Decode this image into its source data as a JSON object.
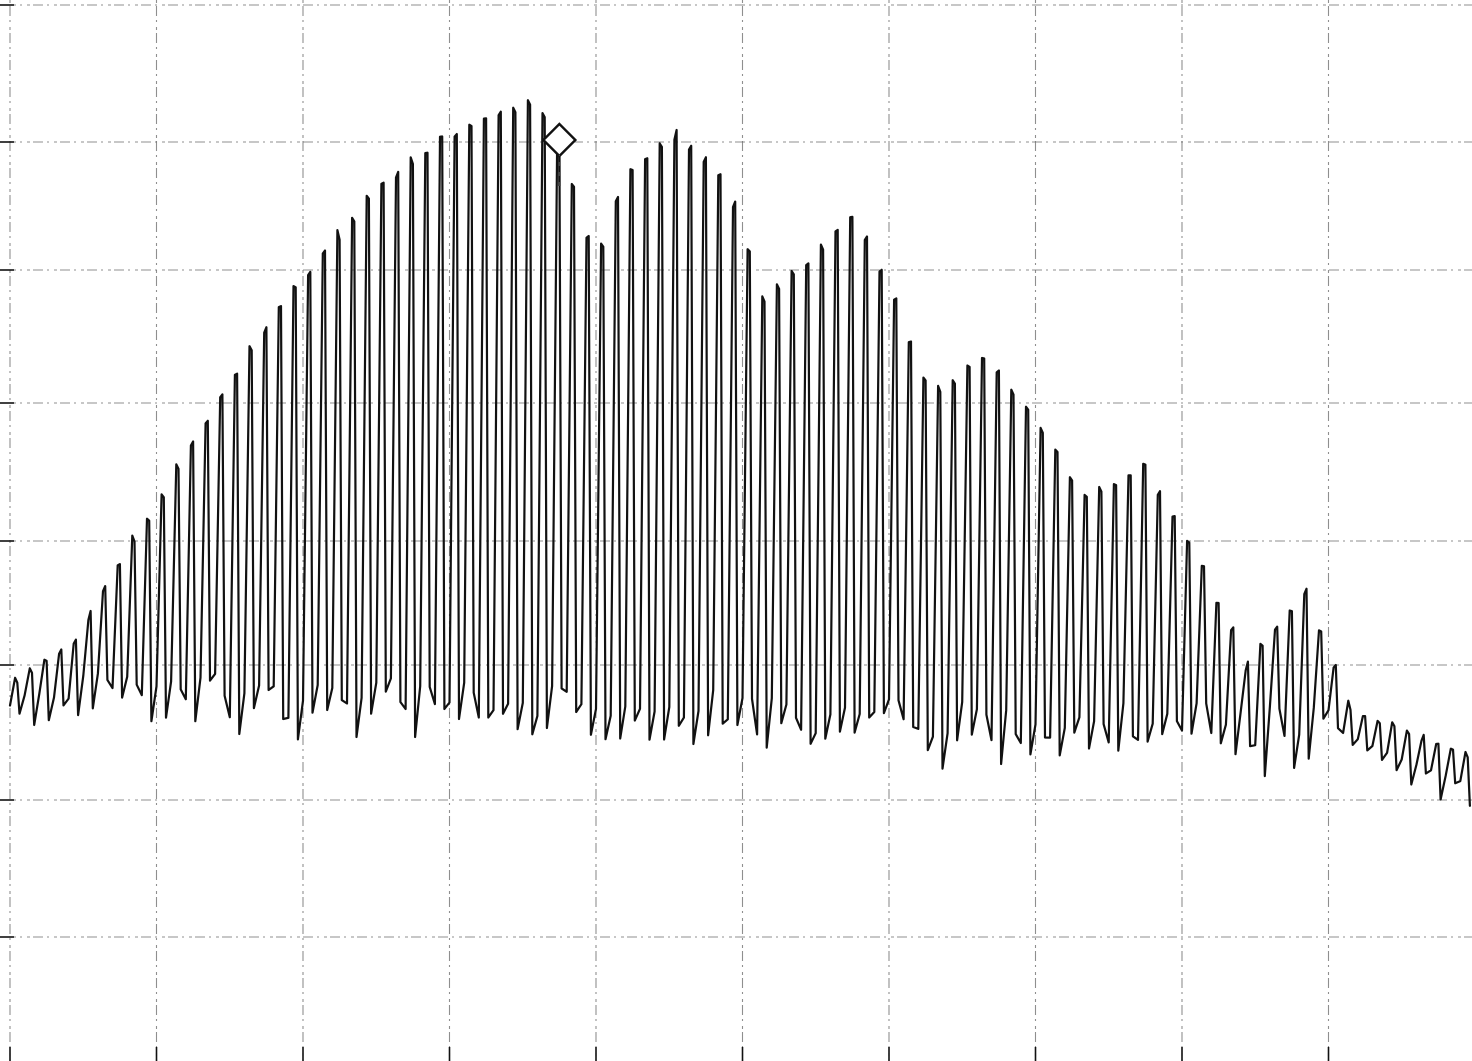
{
  "chart_data": {
    "type": "line",
    "title": "",
    "xlabel": "",
    "ylabel": "",
    "grid": true,
    "legend": "none",
    "xlim": [
      0,
      10
    ],
    "ylim": [
      -7.5,
      0
    ],
    "x_divisions": 10,
    "y_divisions": 7.5,
    "series": [
      {
        "name": "",
        "description_style": "dense comb of narrow spectral lines",
        "line_spacing_div": 0.1,
        "floor": -5.0,
        "envelope": [
          {
            "x": 0.0,
            "y": -5.1
          },
          {
            "x": 0.4,
            "y": -4.8
          },
          {
            "x": 0.8,
            "y": -4.0
          },
          {
            "x": 1.2,
            "y": -3.3
          },
          {
            "x": 1.6,
            "y": -2.6
          },
          {
            "x": 2.0,
            "y": -2.0
          },
          {
            "x": 2.4,
            "y": -1.45
          },
          {
            "x": 2.8,
            "y": -1.05
          },
          {
            "x": 3.2,
            "y": -0.8
          },
          {
            "x": 3.55,
            "y": -0.7
          },
          {
            "x": 3.75,
            "y": -1.1
          },
          {
            "x": 3.95,
            "y": -1.95
          },
          {
            "x": 4.15,
            "y": -1.3
          },
          {
            "x": 4.5,
            "y": -0.95
          },
          {
            "x": 4.85,
            "y": -1.3
          },
          {
            "x": 5.1,
            "y": -2.2
          },
          {
            "x": 5.35,
            "y": -2.0
          },
          {
            "x": 5.7,
            "y": -1.55
          },
          {
            "x": 5.95,
            "y": -2.1
          },
          {
            "x": 6.25,
            "y": -2.95
          },
          {
            "x": 6.6,
            "y": -2.65
          },
          {
            "x": 6.95,
            "y": -3.1
          },
          {
            "x": 7.3,
            "y": -3.7
          },
          {
            "x": 7.7,
            "y": -3.45
          },
          {
            "x": 8.1,
            "y": -4.2
          },
          {
            "x": 8.4,
            "y": -5.0
          },
          {
            "x": 8.8,
            "y": -4.4
          },
          {
            "x": 9.1,
            "y": -5.3
          },
          {
            "x": 9.5,
            "y": -5.5
          },
          {
            "x": 10.0,
            "y": -5.7
          }
        ]
      }
    ],
    "marker": {
      "symbol": "diamond",
      "x": 3.75,
      "y": -1.0
    },
    "colors": {
      "trace": "#111111",
      "grid": "#6a6a6a",
      "background": "#ffffff"
    }
  }
}
